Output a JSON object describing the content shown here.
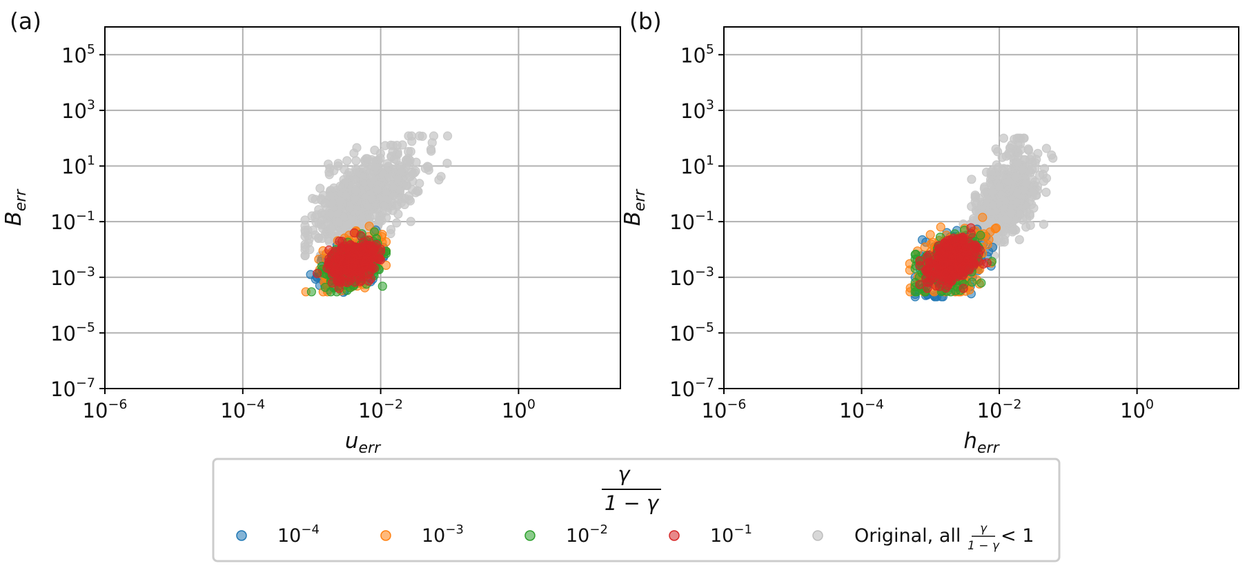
{
  "chart_data": [
    {
      "type": "scatter",
      "panel_label": "(a)",
      "xlabel": "u",
      "xlabel_sub": "err",
      "ylabel": "B",
      "ylabel_sub": "err",
      "x_scale": "log",
      "y_scale": "log",
      "xlim": [
        1e-06,
        30
      ],
      "ylim": [
        1e-07,
        1000000
      ],
      "x_ticks": [
        {
          "base": "10",
          "exp": "−6"
        },
        {
          "base": "10",
          "exp": "−4"
        },
        {
          "base": "10",
          "exp": "−2"
        },
        {
          "base": "10",
          "exp": "0"
        }
      ],
      "y_ticks": [
        {
          "base": "10",
          "exp": "5"
        },
        {
          "base": "10",
          "exp": "3"
        },
        {
          "base": "10",
          "exp": "1"
        },
        {
          "base": "10",
          "exp": "−1"
        },
        {
          "base": "10",
          "exp": "−3"
        },
        {
          "base": "10",
          "exp": "−5"
        },
        {
          "base": "10",
          "exp": "−7"
        }
      ],
      "grid": true,
      "series": [
        {
          "name": "Original, all γ/(1−γ) < 1",
          "color": "#c7c7c7",
          "cluster": {
            "x_range": [
              0.0008,
              0.12
            ],
            "y_range": [
              0.006,
              120
            ],
            "typical": [
              0.006,
              0.6
            ]
          }
        },
        {
          "name": "10^-4",
          "color": "#1f77b4",
          "cluster": {
            "x_range": [
              0.0009,
              0.011
            ],
            "y_range": [
              0.0002,
              0.05
            ],
            "typical": [
              0.004,
              0.003
            ]
          }
        },
        {
          "name": "10^-3",
          "color": "#ff7f0e",
          "cluster": {
            "x_range": [
              0.0008,
              0.012
            ],
            "y_range": [
              0.0003,
              0.08
            ],
            "typical": [
              0.004,
              0.004
            ]
          }
        },
        {
          "name": "10^-2",
          "color": "#2ca02c",
          "cluster": {
            "x_range": [
              0.0009,
              0.012
            ],
            "y_range": [
              0.0003,
              0.05
            ],
            "typical": [
              0.004,
              0.003
            ]
          }
        },
        {
          "name": "10^-1",
          "color": "#d62728",
          "cluster": {
            "x_range": [
              0.0011,
              0.01
            ],
            "y_range": [
              0.0004,
              0.04
            ],
            "typical": [
              0.004,
              0.004
            ]
          }
        }
      ]
    },
    {
      "type": "scatter",
      "panel_label": "(b)",
      "xlabel": "h",
      "xlabel_sub": "err",
      "ylabel": "B",
      "ylabel_sub": "err",
      "x_scale": "log",
      "y_scale": "log",
      "xlim": [
        1e-06,
        30
      ],
      "ylim": [
        1e-07,
        1000000
      ],
      "x_ticks": [
        {
          "base": "10",
          "exp": "−6"
        },
        {
          "base": "10",
          "exp": "−4"
        },
        {
          "base": "10",
          "exp": "−2"
        },
        {
          "base": "10",
          "exp": "0"
        }
      ],
      "y_ticks": [
        {
          "base": "10",
          "exp": "5"
        },
        {
          "base": "10",
          "exp": "3"
        },
        {
          "base": "10",
          "exp": "1"
        },
        {
          "base": "10",
          "exp": "−1"
        },
        {
          "base": "10",
          "exp": "−3"
        },
        {
          "base": "10",
          "exp": "−5"
        },
        {
          "base": "10",
          "exp": "−7"
        }
      ],
      "grid": true,
      "series": [
        {
          "name": "Original, all γ/(1−γ) < 1",
          "color": "#c7c7c7",
          "cluster": {
            "x_range": [
              0.003,
              0.06
            ],
            "y_range": [
              0.006,
              100
            ],
            "typical": [
              0.012,
              0.5
            ]
          }
        },
        {
          "name": "10^-4",
          "color": "#1f77b4",
          "cluster": {
            "x_range": [
              0.0006,
              0.008
            ],
            "y_range": [
              0.0002,
              0.3
            ],
            "typical": [
              0.002,
              0.003
            ]
          }
        },
        {
          "name": "10^-3",
          "color": "#ff7f0e",
          "cluster": {
            "x_range": [
              0.0005,
              0.009
            ],
            "y_range": [
              0.0003,
              0.3
            ],
            "typical": [
              0.002,
              0.004
            ]
          }
        },
        {
          "name": "10^-2",
          "color": "#2ca02c",
          "cluster": {
            "x_range": [
              0.0006,
              0.01
            ],
            "y_range": [
              0.0003,
              0.08
            ],
            "typical": [
              0.002,
              0.003
            ]
          }
        },
        {
          "name": "10^-1",
          "color": "#d62728",
          "cluster": {
            "x_range": [
              0.0007,
              0.008
            ],
            "y_range": [
              0.0004,
              0.06
            ],
            "typical": [
              0.002,
              0.004
            ]
          }
        }
      ]
    }
  ],
  "legend": {
    "placement": "bottom-center",
    "title_numerator": "γ",
    "title_denominator": "1 − γ",
    "entries": [
      {
        "label_base": "10",
        "label_exp": "−4",
        "color": "#1f77b4"
      },
      {
        "label_base": "10",
        "label_exp": "−3",
        "color": "#ff7f0e"
      },
      {
        "label_base": "10",
        "label_exp": "−2",
        "color": "#2ca02c"
      },
      {
        "label_base": "10",
        "label_exp": "−1",
        "color": "#d62728"
      }
    ],
    "original_entry": {
      "prefix": "Original, all",
      "frac_num": "γ",
      "frac_den": "1 − γ",
      "suffix": "< 1",
      "color": "#c7c7c7"
    }
  }
}
